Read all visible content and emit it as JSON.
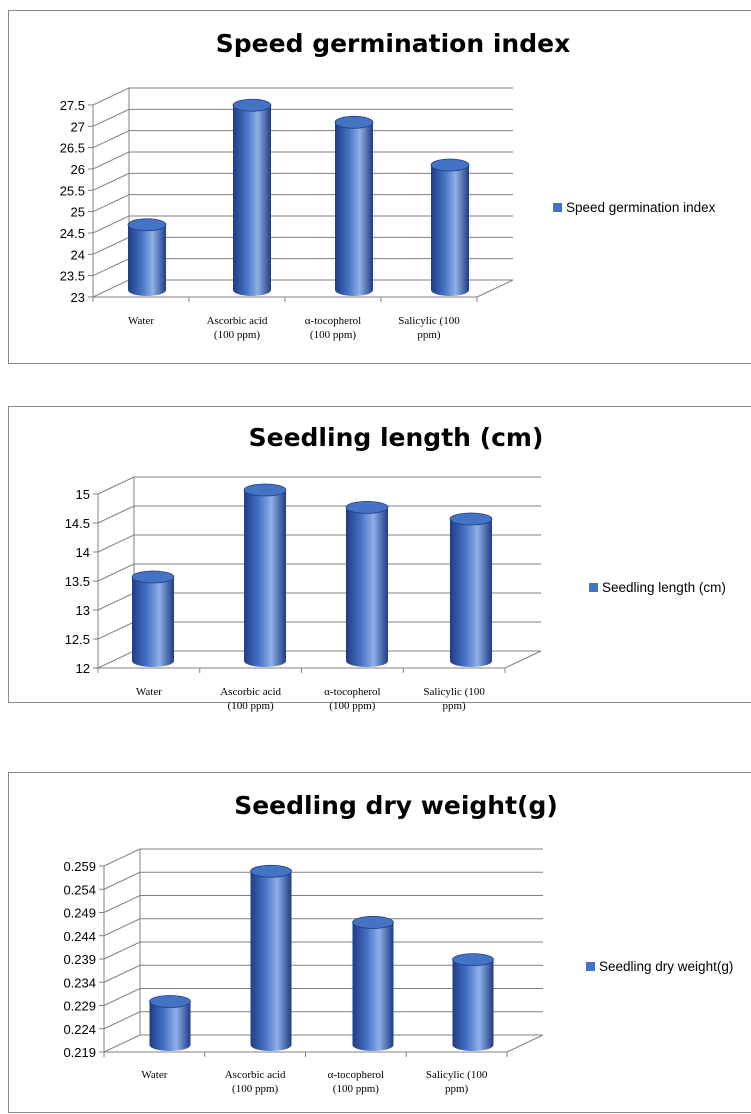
{
  "colors": {
    "bar": "#4472c4",
    "bar_dark": "#1f3c86",
    "bar_light": "#8fb0e6",
    "grid": "#808080"
  },
  "chart_data": [
    {
      "type": "bar",
      "title": "Speed germination index",
      "categories": [
        "Water",
        "Ascorbic acid (100 ppm)",
        "α-tocopherol (100 ppm)",
        "Salicylic (100 ppm)"
      ],
      "category_lines": [
        [
          "Water"
        ],
        [
          "Ascorbic acid",
          "(100 ppm)"
        ],
        [
          "α-tocopherol",
          "(100 ppm)"
        ],
        [
          "Salicylic (100",
          "ppm)"
        ]
      ],
      "series": [
        {
          "name": "Speed germination index",
          "values": [
            24.6,
            27.4,
            27.0,
            26.0
          ]
        }
      ],
      "ylim": [
        23,
        27.5
      ],
      "yticks": [
        "23",
        "23.5",
        "24",
        "24.5",
        "25",
        "25.5",
        "26",
        "26.5",
        "27",
        "27.5"
      ],
      "ytick_values": [
        23,
        23.5,
        24,
        24.5,
        25,
        25.5,
        26,
        26.5,
        27,
        27.5
      ],
      "grid": true,
      "legend": "right"
    },
    {
      "type": "bar",
      "title": "Seedling length (cm)",
      "categories": [
        "Water",
        "Ascorbic acid (100 ppm)",
        "α-tocopherol (100 ppm)",
        "Salicylic (100 ppm)"
      ],
      "category_lines": [
        [
          "Water"
        ],
        [
          "Ascorbic acid",
          "(100 ppm)"
        ],
        [
          "α-tocopherol",
          "(100 ppm)"
        ],
        [
          "Salicylic (100",
          "ppm)"
        ]
      ],
      "series": [
        {
          "name": "Seedling length (cm)",
          "values": [
            13.5,
            15.0,
            14.7,
            14.5
          ]
        }
      ],
      "ylim": [
        12,
        15
      ],
      "yticks": [
        "12",
        "12.5",
        "13",
        "13.5",
        "14",
        "14.5",
        "15"
      ],
      "ytick_values": [
        12,
        12.5,
        13,
        13.5,
        14,
        14.5,
        15
      ],
      "grid": true,
      "legend": "right"
    },
    {
      "type": "bar",
      "title": "Seedling dry weight(g)",
      "categories": [
        "Water",
        "Ascorbic acid (100 ppm)",
        "α-tocopherol (100 ppm)",
        "Salicylic (100 ppm)"
      ],
      "category_lines": [
        [
          "Water"
        ],
        [
          "Ascorbic acid",
          "(100 ppm)"
        ],
        [
          "α-tocopherol",
          "(100 ppm)"
        ],
        [
          "Salicylic (100",
          "ppm)"
        ]
      ],
      "series": [
        {
          "name": "Seedling dry weight(g)",
          "values": [
            0.229,
            0.257,
            0.246,
            0.238
          ]
        }
      ],
      "ylim": [
        0.219,
        0.259
      ],
      "yticks": [
        "0.219",
        "0.224",
        "0.229",
        "0.234",
        "0.239",
        "0.244",
        "0.249",
        "0.254",
        "0.259"
      ],
      "ytick_values": [
        0.219,
        0.224,
        0.229,
        0.234,
        0.239,
        0.244,
        0.249,
        0.254,
        0.259
      ],
      "grid": true,
      "legend": "right"
    }
  ]
}
